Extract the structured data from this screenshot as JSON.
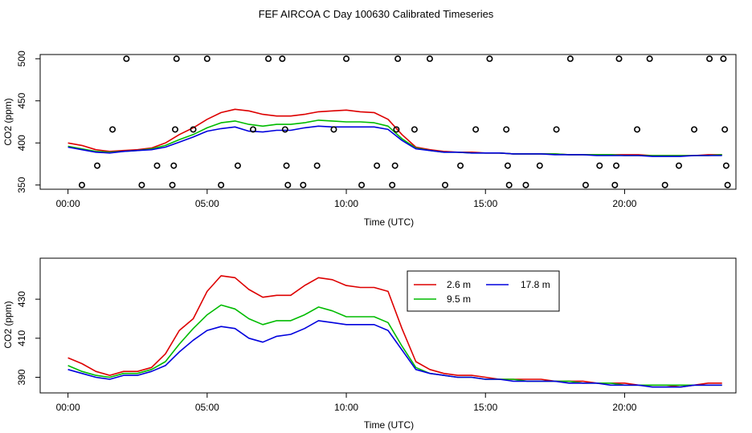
{
  "title": "FEF AIRCOA C  Day 100630  Calibrated Timeseries",
  "colors": {
    "s1": "#dd0000",
    "s2": "#00bb00",
    "s3": "#0000dd"
  },
  "chart_data": [
    {
      "type": "line",
      "xlabel": "Time (UTC)",
      "ylabel": "CO2 (ppm)",
      "xlim": [
        -1.0,
        24.0
      ],
      "ylim": [
        345,
        505
      ],
      "xticks": [
        0,
        5,
        10,
        15,
        20
      ],
      "xtick_labels": [
        "00:00",
        "05:00",
        "10:00",
        "15:00",
        "20:00"
      ],
      "yticks": [
        350,
        400,
        450,
        500
      ],
      "ytick_labels": [
        "350",
        "400",
        "450",
        "500"
      ],
      "x_range": [
        0.0,
        23.5
      ],
      "series": [
        {
          "name": "2.6 m",
          "color": "#dd0000",
          "values": [
            400,
            397,
            392,
            390,
            391,
            392,
            394,
            400,
            410,
            418,
            428,
            436,
            440,
            438,
            434,
            432,
            432,
            434,
            437,
            438,
            439,
            437,
            436,
            428,
            410,
            395,
            392,
            390,
            389,
            389,
            388,
            388,
            387,
            387,
            387,
            387,
            386,
            386,
            386,
            386,
            386,
            386,
            385,
            385,
            385,
            385,
            386,
            386
          ]
        },
        {
          "name": "9.5 m",
          "color": "#00bb00",
          "values": [
            396,
            393,
            390,
            389,
            390,
            391,
            393,
            397,
            404,
            410,
            418,
            424,
            426,
            422,
            420,
            422,
            422,
            424,
            427,
            426,
            425,
            425,
            424,
            420,
            405,
            394,
            391,
            389,
            389,
            388,
            388,
            388,
            387,
            387,
            387,
            387,
            386,
            386,
            386,
            386,
            385,
            385,
            385,
            385,
            385,
            385,
            385,
            386
          ]
        },
        {
          "name": "17.8 m",
          "color": "#0000dd",
          "values": [
            395,
            392,
            389,
            388,
            390,
            391,
            392,
            395,
            401,
            407,
            414,
            417,
            419,
            414,
            413,
            415,
            415,
            418,
            420,
            419,
            419,
            419,
            419,
            416,
            403,
            393,
            391,
            389,
            389,
            388,
            388,
            388,
            387,
            387,
            387,
            386,
            386,
            386,
            385,
            385,
            385,
            385,
            384,
            384,
            384,
            385,
            385,
            385
          ]
        }
      ],
      "scatter_points": [
        {
          "x": 0.5,
          "y": 350
        },
        {
          "x": 1.05,
          "y": 373
        },
        {
          "x": 1.6,
          "y": 416
        },
        {
          "x": 2.1,
          "y": 500
        },
        {
          "x": 2.65,
          "y": 350
        },
        {
          "x": 3.2,
          "y": 373
        },
        {
          "x": 3.75,
          "y": 350
        },
        {
          "x": 3.8,
          "y": 373
        },
        {
          "x": 3.85,
          "y": 416
        },
        {
          "x": 3.9,
          "y": 500
        },
        {
          "x": 4.5,
          "y": 416
        },
        {
          "x": 5.0,
          "y": 500
        },
        {
          "x": 5.5,
          "y": 350
        },
        {
          "x": 6.1,
          "y": 373
        },
        {
          "x": 6.65,
          "y": 416
        },
        {
          "x": 7.2,
          "y": 500
        },
        {
          "x": 7.7,
          "y": 500
        },
        {
          "x": 7.8,
          "y": 416
        },
        {
          "x": 7.85,
          "y": 373
        },
        {
          "x": 7.9,
          "y": 350
        },
        {
          "x": 8.45,
          "y": 350
        },
        {
          "x": 8.95,
          "y": 373
        },
        {
          "x": 9.55,
          "y": 416
        },
        {
          "x": 10.0,
          "y": 500
        },
        {
          "x": 10.55,
          "y": 350
        },
        {
          "x": 11.1,
          "y": 373
        },
        {
          "x": 11.65,
          "y": 350
        },
        {
          "x": 11.75,
          "y": 373
        },
        {
          "x": 11.8,
          "y": 416
        },
        {
          "x": 11.85,
          "y": 500
        },
        {
          "x": 12.45,
          "y": 416
        },
        {
          "x": 13.0,
          "y": 500
        },
        {
          "x": 13.55,
          "y": 350
        },
        {
          "x": 14.1,
          "y": 373
        },
        {
          "x": 14.65,
          "y": 416
        },
        {
          "x": 15.15,
          "y": 500
        },
        {
          "x": 15.75,
          "y": 416
        },
        {
          "x": 15.8,
          "y": 373
        },
        {
          "x": 15.85,
          "y": 350
        },
        {
          "x": 16.45,
          "y": 350
        },
        {
          "x": 16.95,
          "y": 373
        },
        {
          "x": 17.55,
          "y": 416
        },
        {
          "x": 18.05,
          "y": 500
        },
        {
          "x": 18.6,
          "y": 350
        },
        {
          "x": 19.1,
          "y": 373
        },
        {
          "x": 19.65,
          "y": 350
        },
        {
          "x": 19.7,
          "y": 373
        },
        {
          "x": 19.8,
          "y": 500
        },
        {
          "x": 20.45,
          "y": 416
        },
        {
          "x": 20.9,
          "y": 500
        },
        {
          "x": 21.45,
          "y": 350
        },
        {
          "x": 21.95,
          "y": 373
        },
        {
          "x": 22.5,
          "y": 416
        },
        {
          "x": 23.05,
          "y": 500
        },
        {
          "x": 23.55,
          "y": 500
        },
        {
          "x": 23.6,
          "y": 416
        },
        {
          "x": 23.65,
          "y": 373
        },
        {
          "x": 23.7,
          "y": 350
        }
      ]
    },
    {
      "type": "line",
      "xlabel": "Time (UTC)",
      "ylabel": "CO2 (ppm)",
      "xlim": [
        -1.0,
        24.0
      ],
      "ylim": [
        382,
        451
      ],
      "xticks": [
        0,
        5,
        10,
        15,
        20
      ],
      "xtick_labels": [
        "00:00",
        "05:00",
        "10:00",
        "15:00",
        "20:00"
      ],
      "yticks": [
        390,
        410,
        430
      ],
      "ytick_labels": [
        "390",
        "410",
        "430"
      ],
      "x_range": [
        0.0,
        23.5
      ],
      "legend": {
        "placement": "top-right",
        "entries": [
          "2.6 m",
          "9.5 m",
          "17.8 m"
        ]
      },
      "series": [
        {
          "name": "2.6 m",
          "color": "#dd0000",
          "values": [
            400,
            397,
            393,
            391,
            393,
            393,
            395,
            402,
            414,
            420,
            434,
            442,
            441,
            435,
            431,
            432,
            432,
            437,
            441,
            440,
            437,
            436,
            436,
            434,
            415,
            398,
            394,
            392,
            391,
            391,
            390,
            389,
            389,
            389,
            389,
            388,
            388,
            388,
            387,
            387,
            387,
            386,
            386,
            386,
            385,
            386,
            387,
            387
          ]
        },
        {
          "name": "9.5 m",
          "color": "#00bb00",
          "values": [
            396,
            393,
            391,
            390,
            392,
            392,
            394,
            398,
            407,
            415,
            422,
            427,
            425,
            420,
            417,
            419,
            419,
            422,
            426,
            424,
            421,
            421,
            421,
            418,
            406,
            395,
            392,
            391,
            390,
            390,
            389,
            389,
            389,
            388,
            388,
            388,
            388,
            387,
            387,
            387,
            386,
            386,
            386,
            386,
            386,
            386,
            386,
            386
          ]
        },
        {
          "name": "17.8 m",
          "color": "#0000dd",
          "values": [
            394,
            392,
            390,
            389,
            391,
            391,
            393,
            396,
            403,
            409,
            414,
            416,
            415,
            410,
            408,
            411,
            412,
            415,
            419,
            418,
            417,
            417,
            417,
            414,
            404,
            394,
            392,
            391,
            390,
            390,
            389,
            389,
            388,
            388,
            388,
            388,
            387,
            387,
            387,
            386,
            386,
            386,
            385,
            385,
            385,
            386,
            386,
            386
          ]
        }
      ]
    }
  ]
}
